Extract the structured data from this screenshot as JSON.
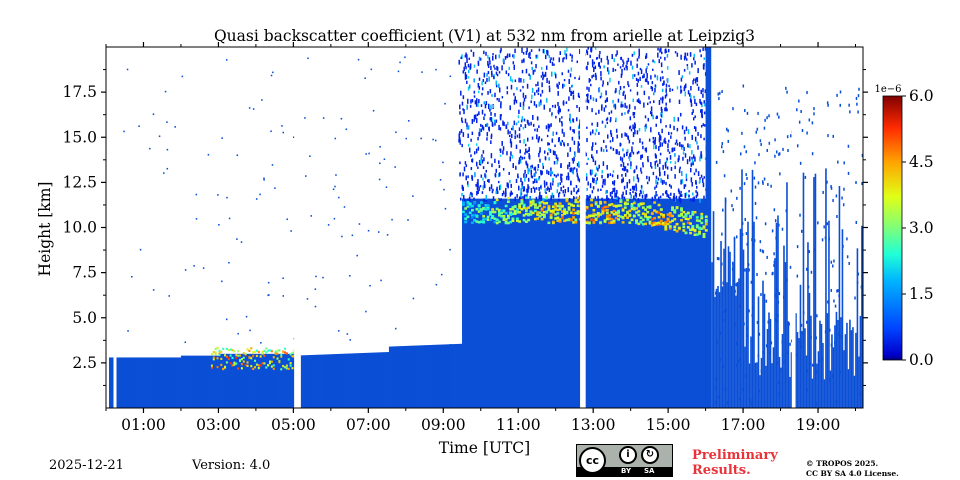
{
  "chart_data": {
    "type": "heatmap",
    "title": "Quasi backscatter coefficient (V1) at 532 nm from arielle at Leipzig3",
    "xlabel": "Time [UTC]",
    "ylabel": "Height [km]",
    "xlim": [
      0.0,
      20.2
    ],
    "ylim": [
      0.0,
      20.0
    ],
    "x_tick_labels": [
      "01:00",
      "03:00",
      "05:00",
      "07:00",
      "09:00",
      "11:00",
      "13:00",
      "15:00",
      "17:00",
      "19:00"
    ],
    "x_ticks": [
      1,
      3,
      5,
      7,
      9,
      11,
      13,
      15,
      17,
      19
    ],
    "y_tick_labels": [
      "2.5",
      "5.0",
      "7.5",
      "10.0",
      "12.5",
      "15.0",
      "17.5"
    ],
    "y_ticks": [
      2.5,
      5.0,
      7.5,
      10.0,
      12.5,
      15.0,
      17.5
    ],
    "colorbar": {
      "exponent_label": "1e−6",
      "range": [
        0.0,
        6.0
      ],
      "tick_labels": [
        "0.0",
        "1.5",
        "3.0",
        "4.5",
        "6.0"
      ],
      "ticks": [
        0.0,
        1.5,
        3.0,
        4.5,
        6.0
      ],
      "colormap": "jet"
    },
    "gaps_hours": [
      [
        0.0,
        0.03
      ],
      [
        0.2,
        0.28
      ],
      [
        5.02,
        5.2
      ],
      [
        12.65,
        12.8
      ],
      [
        18.3,
        18.4
      ]
    ],
    "features": [
      {
        "name": "boundary layer top",
        "t_start": 0.2,
        "t_end": 9.5,
        "top_km": 2.9
      },
      {
        "name": "cirrus layer",
        "t_start": 9.5,
        "t_end": 16.0,
        "base_km": 9.5,
        "top_km": 11.5,
        "max_value": 6.0
      },
      {
        "name": "low-level aerosol peak",
        "t_start": 3.0,
        "t_end": 5.0,
        "height_km": 2.5,
        "max_value": 6.0
      }
    ]
  },
  "footer": {
    "date": "2025-12-21",
    "version": "Version: 4.0",
    "license_badge": {
      "cc": "cc",
      "by": "BY",
      "sa": "SA"
    },
    "preliminary_line1": "Preliminary",
    "preliminary_line2": "Results.",
    "copyright_line1": "© TROPOS 2025.",
    "copyright_line2": "CC BY SA 4.0 License."
  }
}
